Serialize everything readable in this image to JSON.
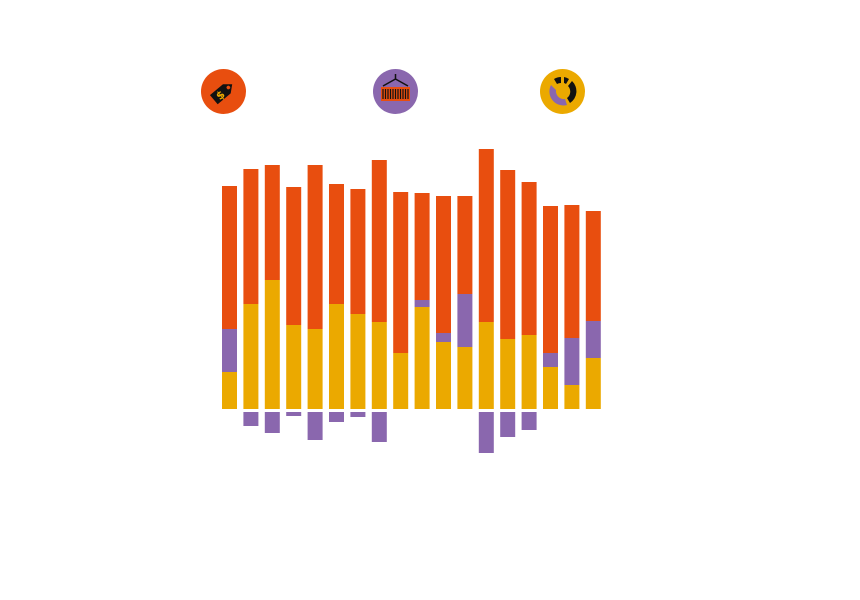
{
  "icons": [
    {
      "name": "price-tag-dollar-icon",
      "color": "#E84E0F"
    },
    {
      "name": "shipping-container-crane-icon",
      "color": "#8A67AE"
    },
    {
      "name": "pie-chart-gauge-icon",
      "color": "#EBA900"
    }
  ],
  "chart_data": {
    "type": "bar",
    "stacked": true,
    "title": "",
    "xlabel": "",
    "ylabel": "",
    "grid": false,
    "axes_visible": false,
    "legend": "none",
    "colors": {
      "yellow": "#EBA900",
      "purple": "#8A67AE",
      "orange": "#E84E0F"
    },
    "series": [
      {
        "color": "#EBA900",
        "values": [
          37,
          105,
          129,
          84,
          80,
          105,
          95,
          87,
          56,
          102,
          67,
          62,
          87,
          70,
          74,
          42,
          24,
          51
        ]
      },
      {
        "color": "#8A67AE",
        "values": [
          43,
          0,
          0,
          0,
          0,
          0,
          0,
          0,
          0,
          7,
          9,
          53,
          0,
          0,
          0,
          14,
          47,
          37
        ]
      },
      {
        "color": "#E84E0F",
        "values": [
          143,
          135,
          115,
          138,
          164,
          120,
          125,
          162,
          161,
          107,
          137,
          98,
          173,
          169,
          153,
          147,
          133,
          110
        ]
      },
      {
        "color": "#8A67AE",
        "negative": true,
        "values": [
          0,
          -14,
          -21,
          -4,
          -28,
          -10,
          -5,
          -30,
          0,
          0,
          0,
          0,
          -41,
          -25,
          -18,
          0,
          0,
          0
        ]
      }
    ]
  }
}
